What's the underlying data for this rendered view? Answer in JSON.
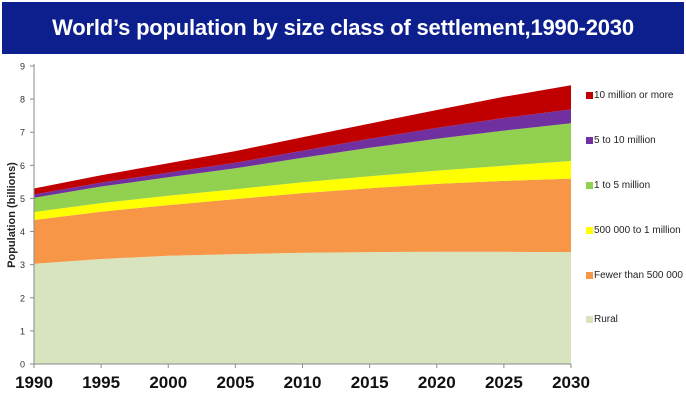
{
  "chart_data": {
    "type": "area",
    "stacked": true,
    "title": "World’s population by size class of settlement,1990-2030",
    "xlabel": "",
    "ylabel": "Population (billions)",
    "x": [
      1990,
      1995,
      2000,
      2005,
      2010,
      2015,
      2020,
      2025,
      2030
    ],
    "xlim": [
      1990,
      2030
    ],
    "ylim": [
      0,
      9
    ],
    "yticks": [
      "0",
      "1",
      "2",
      "3",
      "4",
      "5",
      "6",
      "7",
      "8",
      "9"
    ],
    "xticks": [
      "1990",
      "1995",
      "2000",
      "2005",
      "2010",
      "2015",
      "2020",
      "2025",
      "2030"
    ],
    "grid": false,
    "legend_position": "right",
    "series": [
      {
        "name": "Rural",
        "color": "#d7e4bd",
        "values": [
          3.03,
          3.17,
          3.27,
          3.32,
          3.36,
          3.38,
          3.39,
          3.39,
          3.38
        ]
      },
      {
        "name": "Fewer than 500 000",
        "color": "#f79646",
        "values": [
          1.32,
          1.43,
          1.53,
          1.66,
          1.8,
          1.93,
          2.05,
          2.14,
          2.22
        ]
      },
      {
        "name": "500 000 to 1 million",
        "color": "#ffff00",
        "values": [
          0.24,
          0.26,
          0.28,
          0.3,
          0.33,
          0.36,
          0.4,
          0.46,
          0.53
        ]
      },
      {
        "name": "1 to 5 million",
        "color": "#92d050",
        "values": [
          0.43,
          0.5,
          0.56,
          0.63,
          0.74,
          0.86,
          0.96,
          1.06,
          1.14
        ]
      },
      {
        "name": "5 to 10 million",
        "color": "#7030a0",
        "values": [
          0.1,
          0.12,
          0.14,
          0.17,
          0.21,
          0.27,
          0.33,
          0.38,
          0.42
        ]
      },
      {
        "name": "10 million or more",
        "color": "#c00000",
        "values": [
          0.18,
          0.22,
          0.28,
          0.35,
          0.41,
          0.46,
          0.54,
          0.64,
          0.73
        ]
      }
    ]
  }
}
